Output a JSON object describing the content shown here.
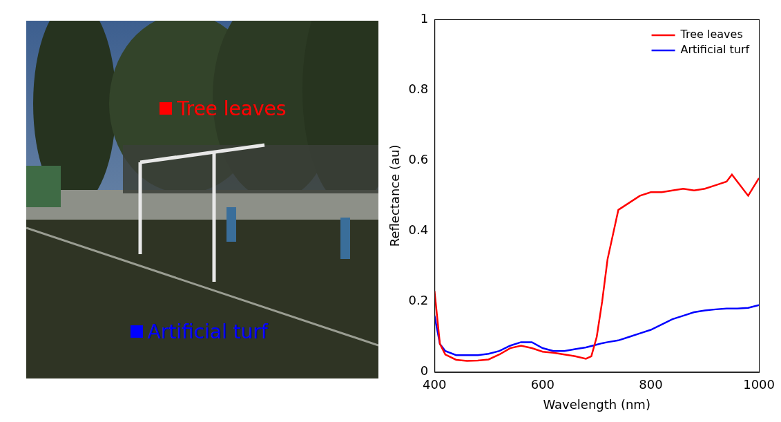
{
  "photo": {
    "markers": [
      {
        "text": "Tree leaves",
        "color": "#ff0000"
      },
      {
        "text": "Artificial turf",
        "color": "#0000ff"
      }
    ]
  },
  "chart_data": {
    "type": "line",
    "x_label": "Wavelength (nm)",
    "y_label": "Reflectance (au)",
    "x": [
      400,
      410,
      420,
      440,
      460,
      480,
      500,
      520,
      540,
      560,
      580,
      600,
      620,
      640,
      660,
      680,
      690,
      700,
      710,
      720,
      740,
      760,
      780,
      800,
      820,
      840,
      860,
      880,
      900,
      920,
      940,
      950,
      960,
      980,
      1000
    ],
    "series": [
      {
        "name": "Tree leaves",
        "color": "#ff0000",
        "values": [
          0.23,
          0.08,
          0.05,
          0.035,
          0.032,
          0.033,
          0.036,
          0.05,
          0.068,
          0.075,
          0.068,
          0.058,
          0.055,
          0.05,
          0.045,
          0.038,
          0.045,
          0.1,
          0.2,
          0.32,
          0.46,
          0.48,
          0.5,
          0.51,
          0.51,
          0.515,
          0.52,
          0.515,
          0.52,
          0.53,
          0.54,
          0.56,
          0.54,
          0.5,
          0.55
        ]
      },
      {
        "name": "Artificial turf",
        "color": "#0000ff",
        "values": [
          0.16,
          0.08,
          0.06,
          0.048,
          0.048,
          0.048,
          0.052,
          0.06,
          0.075,
          0.085,
          0.085,
          0.068,
          0.06,
          0.06,
          0.065,
          0.07,
          0.074,
          0.078,
          0.082,
          0.085,
          0.09,
          0.1,
          0.11,
          0.12,
          0.135,
          0.15,
          0.16,
          0.17,
          0.175,
          0.178,
          0.18,
          0.18,
          0.18,
          0.182,
          0.19
        ]
      }
    ],
    "xlim": [
      400,
      1000
    ],
    "xticks": [
      400,
      600,
      800,
      1000
    ],
    "ylim": [
      0,
      1
    ],
    "yticks": [
      0,
      0.2,
      0.4,
      0.6,
      0.8,
      1
    ],
    "grid": false,
    "legend": "upper right"
  }
}
